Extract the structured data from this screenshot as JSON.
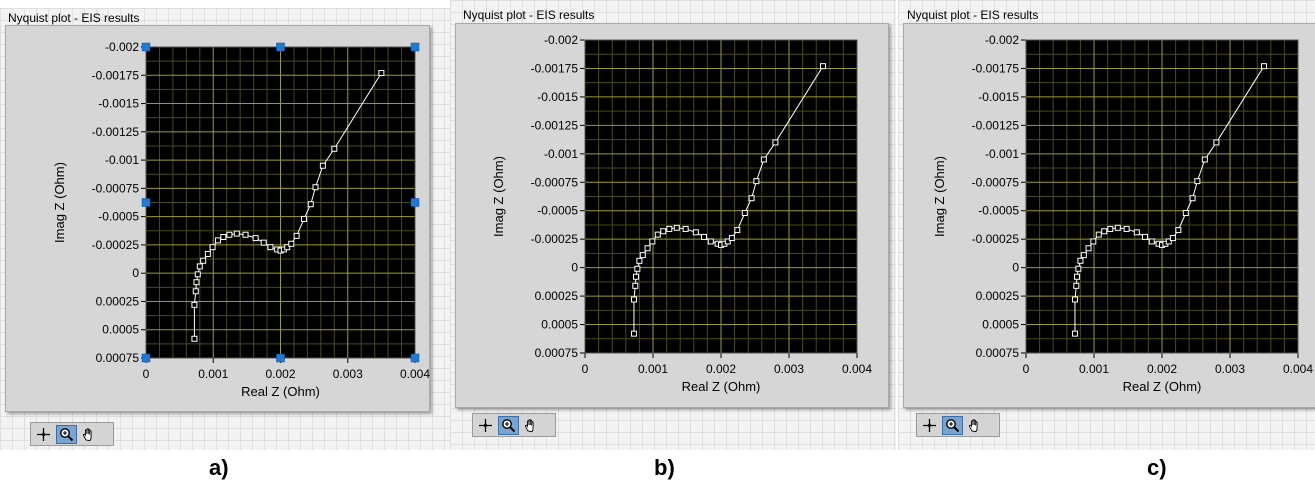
{
  "figures": [
    {
      "id": "a",
      "title": "Nyquist plot - EIS results",
      "caption": "a)",
      "selected": true
    },
    {
      "id": "b",
      "title": "Nyquist plot - EIS results",
      "caption": "b)",
      "selected": false
    },
    {
      "id": "c",
      "title": "Nyquist plot - EIS results",
      "caption": "c)",
      "selected": false
    }
  ],
  "toolbar": {
    "icons": [
      "cursor-move-icon",
      "zoom-icon",
      "pan-hand-icon"
    ]
  },
  "colors": {
    "plot_bg": "#000000",
    "grid_major": "#9c9c2a",
    "grid_minor": "#4a4a18",
    "trace": "#ffffff",
    "panel": "#d6d6d6",
    "handle": "#1e7ad8"
  },
  "chart_data": [
    {
      "type": "scatter",
      "title": "Nyquist plot - EIS results",
      "xlabel": "Real Z (Ohm)",
      "ylabel": "Imag Z (Ohm)",
      "xlim": [
        0,
        0.004
      ],
      "ylim": [
        -0.002,
        0.00075
      ],
      "y_inverted": true,
      "grid": true,
      "xticks": [
        "0",
        "0.001",
        "0.002",
        "0.003",
        "0.004"
      ],
      "yticks": [
        "-0.002",
        "-0.00175",
        "-0.0015",
        "-0.00125",
        "-0.001",
        "-0.00075",
        "-0.0005",
        "-0.00025",
        "0",
        "0.00025",
        "0.0005",
        "0.00075"
      ],
      "series": [
        {
          "x": [
            0.00072,
            0.00072,
            0.00074,
            0.00075,
            0.00077,
            0.0008,
            0.00085,
            0.00092,
            0.00099,
            0.00107,
            0.00115,
            0.00124,
            0.00135,
            0.00148,
            0.00163,
            0.00175,
            0.00185,
            0.00195,
            0.002,
            0.00205,
            0.0021,
            0.00216,
            0.00224,
            0.00235,
            0.00245,
            0.00252,
            0.00263,
            0.0028,
            0.0035
          ],
          "y": [
            0.00058,
            0.00028,
            0.00016,
            8e-05,
            1e-05,
            -6e-05,
            -0.00011,
            -0.00017,
            -0.00023,
            -0.00029,
            -0.00032,
            -0.00034,
            -0.00035,
            -0.00034,
            -0.00031,
            -0.00027,
            -0.00023,
            -0.00021,
            -0.0002,
            -0.00021,
            -0.00023,
            -0.00026,
            -0.00033,
            -0.00048,
            -0.00061,
            -0.00076,
            -0.00095,
            -0.0011,
            -0.00177
          ]
        }
      ]
    },
    {
      "type": "scatter",
      "title": "Nyquist plot - EIS results",
      "xlabel": "Real Z (Ohm)",
      "ylabel": "Imag Z (Ohm)",
      "xlim": [
        0,
        0.004
      ],
      "ylim": [
        -0.002,
        0.00075
      ],
      "y_inverted": true,
      "grid": true,
      "xticks": [
        "0",
        "0.001",
        "0.002",
        "0.003",
        "0.004"
      ],
      "yticks": [
        "-0.002",
        "-0.00175",
        "-0.0015",
        "-0.00125",
        "-0.001",
        "-0.00075",
        "-0.0005",
        "-0.00025",
        "0",
        "0.00025",
        "0.0005",
        "0.00075"
      ],
      "series": [
        {
          "x": [
            0.00072,
            0.00072,
            0.00074,
            0.00075,
            0.00077,
            0.0008,
            0.00085,
            0.00092,
            0.00099,
            0.00107,
            0.00115,
            0.00124,
            0.00135,
            0.00148,
            0.00163,
            0.00175,
            0.00185,
            0.00195,
            0.002,
            0.00205,
            0.0021,
            0.00216,
            0.00224,
            0.00235,
            0.00245,
            0.00252,
            0.00263,
            0.0028,
            0.0035
          ],
          "y": [
            0.00058,
            0.00028,
            0.00016,
            8e-05,
            1e-05,
            -6e-05,
            -0.00011,
            -0.00017,
            -0.00023,
            -0.00029,
            -0.00032,
            -0.00034,
            -0.00035,
            -0.00034,
            -0.00031,
            -0.00027,
            -0.00023,
            -0.00021,
            -0.0002,
            -0.00021,
            -0.00023,
            -0.00026,
            -0.00033,
            -0.00048,
            -0.00061,
            -0.00076,
            -0.00095,
            -0.0011,
            -0.00177
          ]
        }
      ]
    },
    {
      "type": "scatter",
      "title": "Nyquist plot - EIS results",
      "xlabel": "Real Z (Ohm)",
      "ylabel": "Imag Z (Ohm)",
      "xlim": [
        0,
        0.004
      ],
      "ylim": [
        -0.002,
        0.00075
      ],
      "y_inverted": true,
      "grid": true,
      "xticks": [
        "0",
        "0.001",
        "0.002",
        "0.003",
        "0.004"
      ],
      "yticks": [
        "-0.002",
        "-0.00175",
        "-0.0015",
        "-0.00125",
        "-0.001",
        "-0.00075",
        "-0.0005",
        "-0.00025",
        "0",
        "0.00025",
        "0.0005",
        "0.00075"
      ],
      "series": [
        {
          "x": [
            0.00072,
            0.00072,
            0.00074,
            0.00075,
            0.00077,
            0.0008,
            0.00085,
            0.00092,
            0.00099,
            0.00107,
            0.00115,
            0.00124,
            0.00135,
            0.00148,
            0.00163,
            0.00175,
            0.00185,
            0.00195,
            0.002,
            0.00205,
            0.0021,
            0.00216,
            0.00224,
            0.00235,
            0.00245,
            0.00252,
            0.00263,
            0.0028,
            0.0035
          ],
          "y": [
            0.00058,
            0.00028,
            0.00016,
            8e-05,
            1e-05,
            -6e-05,
            -0.00011,
            -0.00017,
            -0.00023,
            -0.00029,
            -0.00032,
            -0.00034,
            -0.00035,
            -0.00034,
            -0.00031,
            -0.00027,
            -0.00023,
            -0.00021,
            -0.0002,
            -0.00021,
            -0.00023,
            -0.00026,
            -0.00033,
            -0.00048,
            -0.00061,
            -0.00076,
            -0.00095,
            -0.0011,
            -0.00177
          ]
        }
      ]
    }
  ]
}
